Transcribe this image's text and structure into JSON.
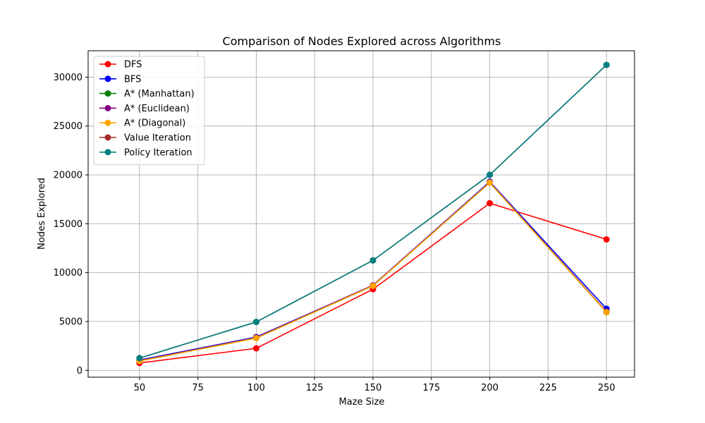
{
  "chart_data": {
    "type": "line",
    "title": "Comparison of Nodes Explored across Algorithms",
    "xlabel": "Maze Size",
    "ylabel": "Nodes Explored",
    "x": [
      50,
      100,
      150,
      200,
      250
    ],
    "xlim": [
      28,
      262
    ],
    "ylim": [
      -700,
      32700
    ],
    "xticks": [
      50,
      75,
      100,
      125,
      150,
      175,
      200,
      225,
      250
    ],
    "yticks": [
      0,
      5000,
      10000,
      15000,
      20000,
      25000,
      30000
    ],
    "grid": true,
    "legend_position": "top-left",
    "series": [
      {
        "name": "DFS",
        "color": "#ff0000",
        "values": [
          750,
          2250,
          8300,
          17100,
          13400
        ]
      },
      {
        "name": "BFS",
        "color": "#0000ff",
        "values": [
          1050,
          3400,
          8700,
          19300,
          6300
        ]
      },
      {
        "name": "A* (Manhattan)",
        "color": "#008000",
        "values": [
          950,
          3300,
          8650,
          19200,
          5950
        ]
      },
      {
        "name": "A* (Euclidean)",
        "color": "#800080",
        "values": [
          1000,
          3350,
          8700,
          19250,
          6000
        ]
      },
      {
        "name": "A* (Diagonal)",
        "color": "#ffa500",
        "values": [
          950,
          3300,
          8650,
          19200,
          5950
        ]
      },
      {
        "name": "Value Iteration",
        "color": "#a52a2a",
        "values": [
          1250,
          4950,
          11250,
          20000,
          31250
        ]
      },
      {
        "name": "Policy Iteration",
        "color": "#008080",
        "values": [
          1250,
          4950,
          11250,
          20000,
          31250
        ]
      }
    ]
  }
}
